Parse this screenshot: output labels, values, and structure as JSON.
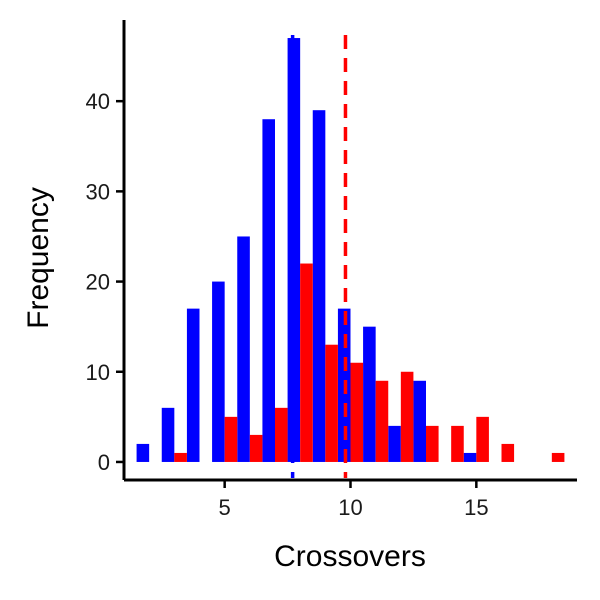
{
  "chart_data": {
    "type": "bar",
    "title": "",
    "xlabel": "Crossovers",
    "ylabel": "Frequency",
    "xlim": [
      1,
      19
    ],
    "ylim": [
      -2,
      49
    ],
    "xticks": [
      5,
      10,
      15
    ],
    "yticks": [
      0,
      10,
      20,
      30,
      40
    ],
    "grid": false,
    "legend": "none",
    "series": [
      {
        "color": "#0000ff",
        "x": [
          2,
          3,
          4,
          5,
          6,
          7,
          8,
          9,
          10,
          11,
          12,
          13,
          14,
          15,
          16,
          17,
          18
        ],
        "values": [
          2,
          6,
          17,
          20,
          25,
          38,
          47,
          39,
          17,
          15,
          4,
          9,
          0,
          1,
          0,
          0,
          0
        ],
        "mean": 7.7
      },
      {
        "color": "#ff0000",
        "x": [
          2,
          3,
          4,
          5,
          6,
          7,
          8,
          9,
          10,
          11,
          12,
          13,
          14,
          15,
          16,
          17,
          18
        ],
        "values": [
          0,
          1,
          0,
          5,
          3,
          6,
          22,
          13,
          11,
          9,
          10,
          4,
          4,
          5,
          2,
          0,
          1
        ],
        "mean": 9.8
      }
    ]
  }
}
